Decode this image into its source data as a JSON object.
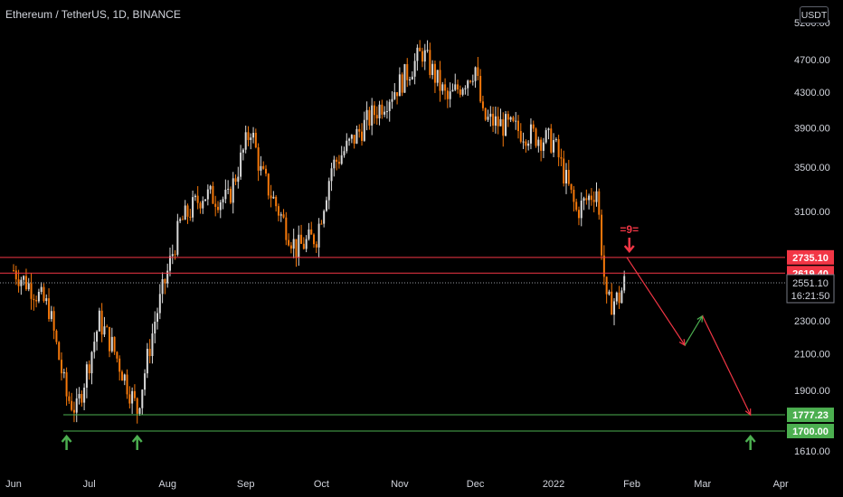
{
  "header": {
    "title": "Ethereum / TetherUS, 1D, BINANCE",
    "currency": "USDT"
  },
  "colors": {
    "background": "#000000",
    "candle": "#f5780a",
    "candle_wick": "#d9d9d9",
    "resistance": "#f23645",
    "support": "#4caf50",
    "axis_text": "#d1d4dc",
    "projection_down": "#f23645",
    "projection_up": "#4caf50"
  },
  "chart_data": {
    "type": "candlestick",
    "title": "Ethereum / TetherUS, 1D, BINANCE",
    "y_axis_labels": [
      "5200.00",
      "4700.00",
      "4300.00",
      "3900.00",
      "3500.00",
      "3100.00",
      "2300.00",
      "2100.00",
      "1900.00",
      "1610.00"
    ],
    "x_axis_labels": [
      "Jun",
      "Jul",
      "Aug",
      "Sep",
      "Oct",
      "Nov",
      "Dec",
      "2022",
      "Feb",
      "Mar",
      "Apr"
    ],
    "price_markers": [
      {
        "label": "2735.10",
        "value": 2735.1,
        "kind": "resistance"
      },
      {
        "label": "2619.40",
        "value": 2619.4,
        "kind": "resistance"
      },
      {
        "label": "1777.23",
        "value": 1777.23,
        "kind": "support"
      },
      {
        "label": "1700.00",
        "value": 1700.0,
        "kind": "support"
      }
    ],
    "current_price": {
      "label": "2551.10",
      "value": 2551.1,
      "countdown": "16:21:50"
    },
    "annotations": {
      "count_label": "=9="
    },
    "price_path": [
      {
        "date": "2021-06-01",
        "price": 2640
      },
      {
        "date": "2021-06-08",
        "price": 2520
      },
      {
        "date": "2021-06-15",
        "price": 2380
      },
      {
        "date": "2021-06-22",
        "price": 1870
      },
      {
        "date": "2021-06-26",
        "price": 1800
      },
      {
        "date": "2021-07-05",
        "price": 2300
      },
      {
        "date": "2021-07-10",
        "price": 2150
      },
      {
        "date": "2021-07-20",
        "price": 1800
      },
      {
        "date": "2021-07-27",
        "price": 2300
      },
      {
        "date": "2021-08-06",
        "price": 3000
      },
      {
        "date": "2021-08-15",
        "price": 3250
      },
      {
        "date": "2021-08-25",
        "price": 3200
      },
      {
        "date": "2021-09-03",
        "price": 3900
      },
      {
        "date": "2021-09-07",
        "price": 3450
      },
      {
        "date": "2021-09-21",
        "price": 2800
      },
      {
        "date": "2021-09-29",
        "price": 2900
      },
      {
        "date": "2021-10-05",
        "price": 3500
      },
      {
        "date": "2021-10-20",
        "price": 4000
      },
      {
        "date": "2021-11-01",
        "price": 4400
      },
      {
        "date": "2021-11-10",
        "price": 4800
      },
      {
        "date": "2021-11-20",
        "price": 4200
      },
      {
        "date": "2021-12-01",
        "price": 4600
      },
      {
        "date": "2021-12-04",
        "price": 4000
      },
      {
        "date": "2021-12-15",
        "price": 3900
      },
      {
        "date": "2022-01-01",
        "price": 3750
      },
      {
        "date": "2022-01-10",
        "price": 3100
      },
      {
        "date": "2022-01-18",
        "price": 3300
      },
      {
        "date": "2022-01-22",
        "price": 2400
      },
      {
        "date": "2022-01-27",
        "price": 2450
      },
      {
        "date": "2022-01-29",
        "price": 2551
      }
    ],
    "projection_path": [
      {
        "date": "2022-01-30",
        "price": 2735
      },
      {
        "date": "2022-02-22",
        "price": 2150
      },
      {
        "date": "2022-03-01",
        "price": 2330
      },
      {
        "date": "2022-03-20",
        "price": 1777
      }
    ],
    "signal_arrows": [
      {
        "date": "2021-06-22",
        "direction": "up",
        "color": "support"
      },
      {
        "date": "2021-07-20",
        "direction": "up",
        "color": "support"
      },
      {
        "date": "2022-03-20",
        "direction": "up",
        "color": "support"
      },
      {
        "date": "2022-01-31",
        "direction": "down",
        "color": "resistance"
      }
    ]
  }
}
